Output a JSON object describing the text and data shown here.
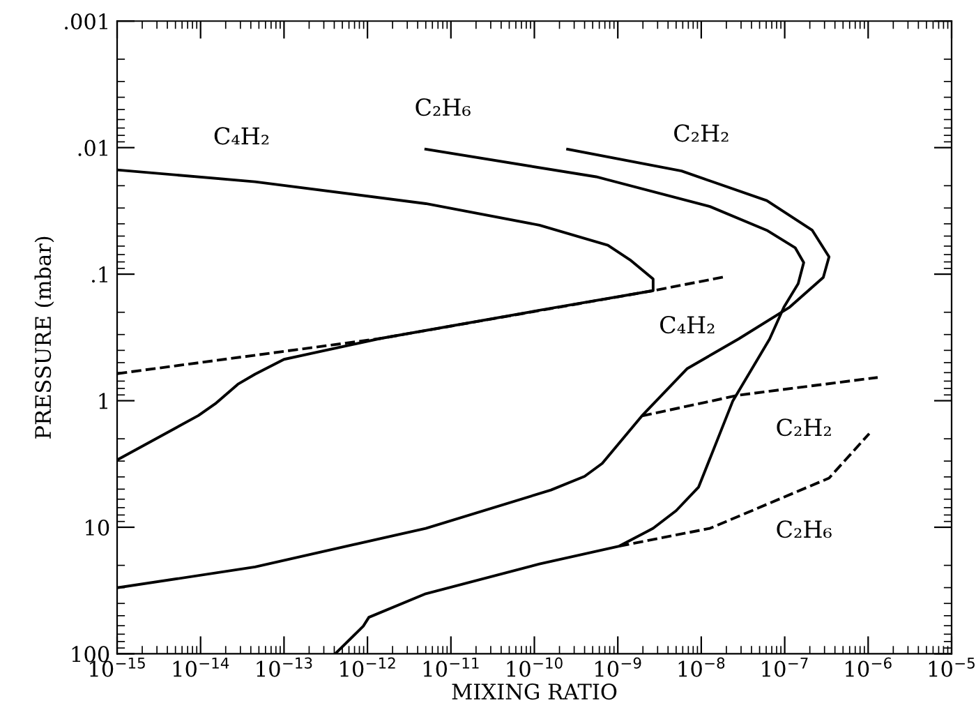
{
  "chart_data": {
    "type": "line",
    "xlabel": "MIXING RATIO",
    "ylabel": "PRESSURE (mbar)",
    "log": "xy",
    "grid": false,
    "marker": "none",
    "xlim": [
      1e-15,
      1e-05
    ],
    "ylim": [
      100,
      0.001
    ],
    "xticks": [
      {
        "value": 1e-15,
        "label": "10$^{−15}$"
      },
      {
        "value": 1e-14,
        "label": "10$^{−14}$"
      },
      {
        "value": 1e-13,
        "label": "10$^{−13}$"
      },
      {
        "value": 1e-12,
        "label": "10$^{−12}$"
      },
      {
        "value": 1e-11,
        "label": "10$^{−11}$"
      },
      {
        "value": 1e-10,
        "label": "10$^{−10}$"
      },
      {
        "value": 1e-09,
        "label": "10$^{−9}$"
      },
      {
        "value": 1e-08,
        "label": "10$^{−8}$"
      },
      {
        "value": 1e-07,
        "label": "10$^{−7}$"
      },
      {
        "value": 1e-06,
        "label": "10$^{−6}$"
      },
      {
        "value": 1e-05,
        "label": "10$^{−5}$"
      }
    ],
    "yticks": [
      {
        "value": 0.001,
        "label": ".001"
      },
      {
        "value": 0.01,
        "label": ".01"
      },
      {
        "value": 0.1,
        "label": ".1"
      },
      1,
      10,
      100
    ],
    "series": [
      {
        "color": "#000000",
        "line_style": "solid",
        "x": [
          1e-15,
          4.5e-14,
          5e-12,
          1.15e-10,
          7.6e-10,
          1.4e-09,
          2.65e-09,
          2.65e-09,
          1.15e-10,
          1.4e-12,
          1e-13,
          4.5e-14,
          2.8e-14,
          1.5e-14,
          9.4e-15,
          1e-15
        ],
        "values": [
          0.015,
          0.0186,
          0.0277,
          0.041,
          0.059,
          0.077,
          0.109,
          0.135,
          0.193,
          0.323,
          0.471,
          0.617,
          0.741,
          1.057,
          1.31,
          2.94
        ]
      },
      {
        "color": "#000000",
        "line_style": "dashed",
        "x": [
          1e-15,
          1.4e-12,
          2.65e-09,
          2.04e-08
        ],
        "values": [
          0.611,
          0.323,
          0.135,
          0.104
        ]
      },
      {
        "color": "#000000",
        "line_style": "solid",
        "x": [
          5e-12,
          5.5e-10,
          1.27e-08,
          6.1e-08,
          1.34e-07,
          1.69e-07,
          1.45e-07,
          9.8e-08,
          6.6e-08,
          2.38e-08,
          9.3e-09,
          5e-09,
          2.65e-09,
          1.04e-09,
          1.15e-10,
          5e-12,
          1.04e-12,
          8.9e-13,
          4.1e-13
        ],
        "values": [
          0.0103,
          0.017,
          0.0292,
          0.045,
          0.062,
          0.081,
          0.119,
          0.182,
          0.325,
          1.01,
          4.81,
          7.4,
          10.2,
          14.1,
          19.5,
          33.5,
          51.5,
          60.5,
          100
        ]
      },
      {
        "color": "#000000",
        "line_style": "dashed",
        "x": [
          1.04e-09,
          1.27e-08,
          3.4e-07,
          1.03e-06
        ],
        "values": [
          14.1,
          10.2,
          4.09,
          1.82
        ]
      },
      {
        "color": "#000000",
        "line_style": "solid",
        "x": [
          2.5e-10,
          5.8e-09,
          6.1e-08,
          2.14e-07,
          3.4e-07,
          2.9e-07,
          1.15e-07,
          2.8e-08,
          6.8e-09,
          1.94e-09,
          6.5e-10,
          4e-10,
          1.58e-10,
          5e-12,
          4.5e-14,
          1e-15
        ],
        "values": [
          0.0103,
          0.0153,
          0.0262,
          0.045,
          0.073,
          0.106,
          0.182,
          0.325,
          0.557,
          1.32,
          3.13,
          3.96,
          5.08,
          10.2,
          20.6,
          30.1
        ]
      },
      {
        "color": "#000000",
        "line_style": "dashed",
        "x": [
          1.94e-09,
          2.8e-08,
          1.3e-06
        ],
        "values": [
          1.32,
          0.904,
          0.655
        ]
      }
    ],
    "annotations": [
      {
        "text": "C₄H₂",
        "x": 3.1e-14,
        "y": 0.0182
      },
      {
        "text": "C₂H₆",
        "x": 8e-12,
        "y": 0.0108
      },
      {
        "text": "C₂H₂",
        "x": 1e-08,
        "y": 0.0173
      },
      {
        "text": "C₄H₂",
        "x": 6.8e-09,
        "y": 0.12
      },
      {
        "text": "C₂H₂",
        "x": 1.7e-07,
        "y": 0.776
      },
      {
        "text": "C₂H₆",
        "x": 1.7e-07,
        "y": 4.95
      }
    ]
  }
}
